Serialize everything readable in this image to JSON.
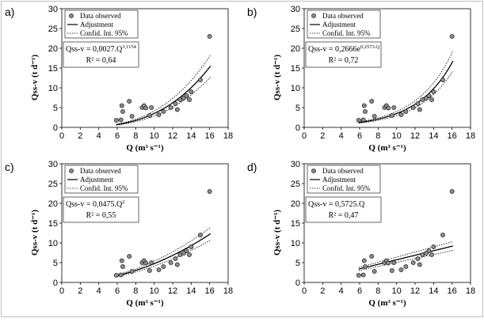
{
  "chart_data": [
    {
      "type": "scatter",
      "panel_label": "a)",
      "xlabel": "Q (m³ s⁻¹)",
      "ylabel": "Qss-v (t d⁻¹)",
      "xlim": [
        0,
        18
      ],
      "ylim": [
        0,
        30
      ],
      "xticks": [
        "0",
        "2",
        "4",
        "6",
        "8",
        "10",
        "12",
        "14",
        "16",
        "18"
      ],
      "yticks": [
        "0",
        "5",
        "10",
        "15",
        "20",
        "25",
        "30"
      ],
      "legend": [
        "Data observed",
        "Adjustment",
        "Confid. Int. 95%"
      ],
      "equation": "Qss-v = 0,0027.Q",
      "equation_exp": "3,1154",
      "r2": "R² = 0,64",
      "model": {
        "kind": "power",
        "a": 0.0027,
        "b": 3.1154,
        "band_lo": 0.82,
        "band_hi": 1.18,
        "x_from": 5.9,
        "x_to": 16.1
      },
      "points": [
        [
          5.9,
          1.8
        ],
        [
          6.4,
          1.9
        ],
        [
          6.5,
          5.5
        ],
        [
          6.6,
          4.0
        ],
        [
          7.3,
          6.6
        ],
        [
          7.6,
          2.8
        ],
        [
          8.7,
          5.0
        ],
        [
          8.9,
          5.5
        ],
        [
          9.1,
          4.9
        ],
        [
          9.5,
          3.0
        ],
        [
          9.7,
          5.0
        ],
        [
          10.5,
          3.2
        ],
        [
          11.0,
          4.0
        ],
        [
          11.8,
          5.0
        ],
        [
          12.3,
          6.0
        ],
        [
          12.5,
          4.5
        ],
        [
          12.8,
          7.0
        ],
        [
          13.2,
          7.4
        ],
        [
          13.5,
          8.0
        ],
        [
          13.8,
          7.0
        ],
        [
          14.0,
          9.0
        ],
        [
          15.0,
          12.0
        ],
        [
          16.0,
          23.0
        ]
      ]
    },
    {
      "type": "scatter",
      "panel_label": "b)",
      "xlabel": "Q (m³ s⁻¹)",
      "ylabel": "Qss-v (t d⁻¹)",
      "xlim": [
        0,
        18
      ],
      "ylim": [
        0,
        30
      ],
      "xticks": [
        "0",
        "2",
        "4",
        "6",
        "8",
        "10",
        "12",
        "14",
        "16",
        "18"
      ],
      "yticks": [
        "0",
        "5",
        "10",
        "15",
        "20",
        "25",
        "30"
      ],
      "legend": [
        "Data observed",
        "Adjustment",
        "Confid. Int. 95%"
      ],
      "equation": "Qss-v = 0,2666e",
      "equation_exp": "0,2573.Q",
      "r2": "R² = 0,72",
      "model": {
        "kind": "exp",
        "a": 0.2666,
        "b": 0.2573,
        "band_lo": 0.85,
        "band_hi": 1.15,
        "x_from": 5.9,
        "x_to": 16.1
      },
      "points": [
        [
          5.9,
          1.8
        ],
        [
          6.4,
          1.9
        ],
        [
          6.5,
          5.5
        ],
        [
          6.6,
          4.0
        ],
        [
          7.3,
          6.6
        ],
        [
          7.6,
          2.8
        ],
        [
          8.7,
          5.0
        ],
        [
          8.9,
          5.5
        ],
        [
          9.1,
          4.9
        ],
        [
          9.5,
          3.0
        ],
        [
          9.7,
          5.0
        ],
        [
          10.5,
          3.2
        ],
        [
          11.0,
          4.0
        ],
        [
          11.8,
          5.0
        ],
        [
          12.3,
          6.0
        ],
        [
          12.5,
          4.5
        ],
        [
          12.8,
          7.0
        ],
        [
          13.2,
          7.4
        ],
        [
          13.5,
          8.0
        ],
        [
          13.8,
          7.0
        ],
        [
          14.0,
          9.0
        ],
        [
          15.0,
          12.0
        ],
        [
          16.0,
          23.0
        ]
      ]
    },
    {
      "type": "scatter",
      "panel_label": "c)",
      "xlabel": "Q (m³ s⁻¹)",
      "ylabel": "Qss-v (t d⁻¹)",
      "xlim": [
        0,
        18
      ],
      "ylim": [
        0,
        30
      ],
      "xticks": [
        "0",
        "2",
        "4",
        "6",
        "8",
        "10",
        "12",
        "14",
        "16",
        "18"
      ],
      "yticks": [
        "0",
        "5",
        "10",
        "15",
        "20",
        "25",
        "30"
      ],
      "legend": [
        "Data observed",
        "Adjustment",
        "Confid. Int. 95%"
      ],
      "equation": "Qss-v = 0,0475.Q",
      "equation_exp": "2",
      "r2": "R² = 0,55",
      "model": {
        "kind": "power",
        "a": 0.0475,
        "b": 2,
        "band_lo": 0.87,
        "band_hi": 1.13,
        "x_from": 5.9,
        "x_to": 16.1
      },
      "points": [
        [
          5.9,
          1.8
        ],
        [
          6.4,
          1.9
        ],
        [
          6.5,
          5.5
        ],
        [
          6.6,
          4.0
        ],
        [
          7.3,
          6.6
        ],
        [
          7.6,
          2.8
        ],
        [
          8.7,
          5.0
        ],
        [
          8.9,
          5.5
        ],
        [
          9.1,
          4.9
        ],
        [
          9.5,
          3.0
        ],
        [
          9.7,
          5.0
        ],
        [
          10.5,
          3.2
        ],
        [
          11.0,
          4.0
        ],
        [
          11.8,
          5.0
        ],
        [
          12.3,
          6.0
        ],
        [
          12.5,
          4.5
        ],
        [
          12.8,
          7.0
        ],
        [
          13.2,
          7.4
        ],
        [
          13.5,
          8.0
        ],
        [
          13.8,
          7.0
        ],
        [
          14.0,
          9.0
        ],
        [
          15.0,
          12.0
        ],
        [
          16.0,
          23.0
        ]
      ]
    },
    {
      "type": "scatter",
      "panel_label": "d)",
      "xlabel": "Q (m³ s⁻¹)",
      "ylabel": "Qss-v (t d⁻¹)",
      "xlim": [
        0,
        18
      ],
      "ylim": [
        0,
        30
      ],
      "xticks": [
        "0",
        "2",
        "4",
        "6",
        "8",
        "10",
        "12",
        "14",
        "16",
        "18"
      ],
      "yticks": [
        "0",
        "5",
        "10",
        "15",
        "20",
        "25",
        "30"
      ],
      "legend": [
        "Data observed",
        "Adjustment",
        "Confid. Int. 95%"
      ],
      "equation": "Qss-v = 0,5725.Q",
      "equation_exp": "",
      "r2": "R² = 0,47",
      "model": {
        "kind": "linear",
        "a": 0.5725,
        "b": 1,
        "band_lo": 0.88,
        "band_hi": 1.12,
        "x_from": 5.9,
        "x_to": 16.1
      },
      "points": [
        [
          5.9,
          1.8
        ],
        [
          6.4,
          1.9
        ],
        [
          6.5,
          5.5
        ],
        [
          6.6,
          4.0
        ],
        [
          7.3,
          6.6
        ],
        [
          7.6,
          2.8
        ],
        [
          8.7,
          5.0
        ],
        [
          8.9,
          5.5
        ],
        [
          9.1,
          4.9
        ],
        [
          9.5,
          3.0
        ],
        [
          9.7,
          5.0
        ],
        [
          10.5,
          3.2
        ],
        [
          11.0,
          4.0
        ],
        [
          11.8,
          5.0
        ],
        [
          12.3,
          6.0
        ],
        [
          12.5,
          4.5
        ],
        [
          12.8,
          7.0
        ],
        [
          13.2,
          7.4
        ],
        [
          13.5,
          8.0
        ],
        [
          13.8,
          7.0
        ],
        [
          14.0,
          9.0
        ],
        [
          15.0,
          12.0
        ],
        [
          16.0,
          23.0
        ]
      ]
    }
  ]
}
